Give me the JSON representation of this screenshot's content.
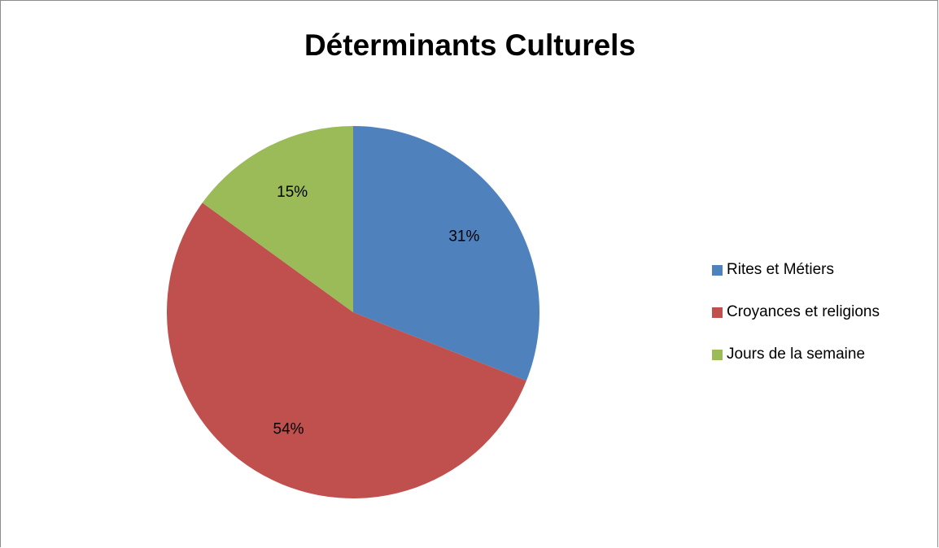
{
  "chart_data": {
    "type": "pie",
    "title": "Déterminants Culturels",
    "categories": [
      "Rites et Métiers",
      "Croyances et religions",
      "Jours de la semaine"
    ],
    "values": [
      31,
      54,
      15
    ],
    "data_labels": [
      "31%",
      "54%",
      "15%"
    ],
    "colors": [
      "#4F81BD",
      "#C0504D",
      "#9BBB59"
    ],
    "legend_position": "right",
    "start_angle": "12 o'clock, clockwise"
  }
}
